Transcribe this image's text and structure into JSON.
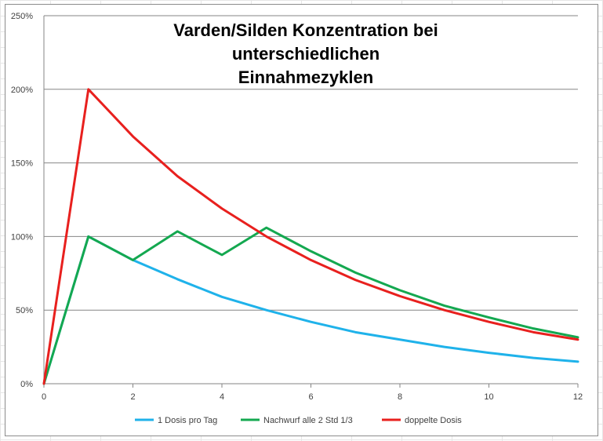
{
  "chart_data": {
    "type": "line",
    "title_line1": "Varden/Silden Konzentration bei unterschiedlichen",
    "title_line2": "Einnahmezyklen",
    "xlabel": "",
    "ylabel": "",
    "x": [
      0,
      1,
      2,
      3,
      4,
      5,
      6,
      7,
      8,
      9,
      10,
      11,
      12
    ],
    "xlim": [
      0,
      12
    ],
    "ylim": [
      0,
      250
    ],
    "x_ticks": [
      "0",
      "2",
      "4",
      "6",
      "8",
      "10",
      "12"
    ],
    "y_ticks": [
      "0%",
      "50%",
      "100%",
      "150%",
      "200%",
      "250%"
    ],
    "grid": "horizontal",
    "legend_position": "bottom",
    "series": [
      {
        "name": "1 Dosis pro Tag",
        "color": "#1fb2ea",
        "values": [
          0,
          100,
          84,
          71,
          59,
          50,
          42,
          35,
          30,
          25,
          21,
          17.5,
          15
        ]
      },
      {
        "name": "Nachwurf alle 2 Std 1/3",
        "color": "#14a850",
        "values": [
          0,
          100,
          84,
          103.5,
          87.5,
          106,
          90,
          75.5,
          63.5,
          53,
          45,
          37.5,
          31.5
        ]
      },
      {
        "name": "doppelte Dosis",
        "color": "#e8201e",
        "values": [
          0,
          200,
          168,
          141,
          119,
          100,
          84,
          70.5,
          59.5,
          50,
          42,
          35,
          30
        ]
      }
    ]
  }
}
